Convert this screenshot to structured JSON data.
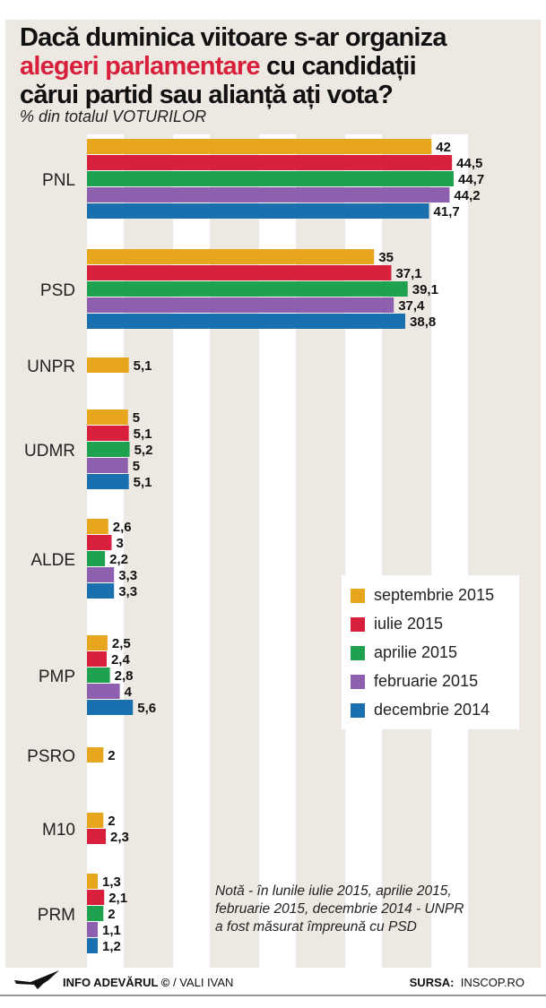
{
  "title": {
    "part1": "Dacă duminica viitoare s-ar organiza",
    "highlight": "alegeri parlamentare",
    "part2": "cu candidații",
    "part3": "cărui partid sau alianță ați vota?"
  },
  "subtitle": "% din totalul VOTURILOR",
  "chart_data": {
    "type": "bar",
    "orientation": "horizontal",
    "title": "Dacă duminica viitoare s-ar organiza alegeri parlamentare cu candidații cărui partid sau alianță ați vota?",
    "subtitle": "% din totalul VOTURILOR",
    "legend_position": "right",
    "series_colors": {
      "septembrie 2015": "#e8a61f",
      "iulie 2015": "#d8203c",
      "aprilie 2015": "#1ea24f",
      "februarie 2015": "#8e5fae",
      "decembrie 2014": "#1a6fae"
    },
    "categories": [
      {
        "name": "PNL",
        "values": [
          {
            "series": "septembrie 2015",
            "label": "42",
            "value": 42
          },
          {
            "series": "iulie 2015",
            "label": "44,5",
            "value": 44.5
          },
          {
            "series": "aprilie 2015",
            "label": "44,7",
            "value": 44.7
          },
          {
            "series": "februarie 2015",
            "label": "44,2",
            "value": 44.2
          },
          {
            "series": "decembrie 2014",
            "label": "41,7",
            "value": 41.7
          }
        ]
      },
      {
        "name": "PSD",
        "values": [
          {
            "series": "septembrie 2015",
            "label": "35",
            "value": 35
          },
          {
            "series": "iulie 2015",
            "label": "37,1",
            "value": 37.1
          },
          {
            "series": "aprilie 2015",
            "label": "39,1",
            "value": 39.1
          },
          {
            "series": "februarie 2015",
            "label": "37,4",
            "value": 37.4
          },
          {
            "series": "decembrie 2014",
            "label": "38,8",
            "value": 38.8
          }
        ]
      },
      {
        "name": "UNPR",
        "values": [
          {
            "series": "septembrie 2015",
            "label": "5,1",
            "value": 5.1
          }
        ]
      },
      {
        "name": "UDMR",
        "values": [
          {
            "series": "septembrie 2015",
            "label": "5",
            "value": 5
          },
          {
            "series": "iulie 2015",
            "label": "5,1",
            "value": 5.1
          },
          {
            "series": "aprilie 2015",
            "label": "5,2",
            "value": 5.2
          },
          {
            "series": "februarie 2015",
            "label": "5",
            "value": 5
          },
          {
            "series": "decembrie 2014",
            "label": "5,1",
            "value": 5.1
          }
        ]
      },
      {
        "name": "ALDE",
        "values": [
          {
            "series": "septembrie 2015",
            "label": "2,6",
            "value": 2.6
          },
          {
            "series": "iulie 2015",
            "label": "3",
            "value": 3
          },
          {
            "series": "aprilie 2015",
            "label": "2,2",
            "value": 2.2
          },
          {
            "series": "februarie 2015",
            "label": "3,3",
            "value": 3.3
          },
          {
            "series": "decembrie 2014",
            "label": "3,3",
            "value": 3.3
          }
        ]
      },
      {
        "name": "PMP",
        "values": [
          {
            "series": "septembrie 2015",
            "label": "2,5",
            "value": 2.5
          },
          {
            "series": "iulie 2015",
            "label": "2,4",
            "value": 2.4
          },
          {
            "series": "aprilie 2015",
            "label": "2,8",
            "value": 2.8
          },
          {
            "series": "februarie 2015",
            "label": "4",
            "value": 4
          },
          {
            "series": "decembrie 2014",
            "label": "5,6",
            "value": 5.6
          }
        ]
      },
      {
        "name": "PSRO",
        "values": [
          {
            "series": "septembrie 2015",
            "label": "2",
            "value": 2
          }
        ]
      },
      {
        "name": "M10",
        "values": [
          {
            "series": "septembrie 2015",
            "label": "2",
            "value": 2
          },
          {
            "series": "iulie 2015",
            "label": "2,3",
            "value": 2.3
          }
        ]
      },
      {
        "name": "PRM",
        "values": [
          {
            "series": "septembrie 2015",
            "label": "1,3",
            "value": 1.3
          },
          {
            "series": "iulie 2015",
            "label": "2,1",
            "value": 2.1
          },
          {
            "series": "aprilie 2015",
            "label": "2",
            "value": 2
          },
          {
            "series": "februarie 2015",
            "label": "1,1",
            "value": 1.1
          },
          {
            "series": "decembrie 2014",
            "label": "1,2",
            "value": 1.2
          }
        ]
      }
    ]
  },
  "legend": [
    {
      "label": "septembrie 2015",
      "color": "#e8a61f"
    },
    {
      "label": "iulie 2015",
      "color": "#d8203c"
    },
    {
      "label": "aprilie 2015",
      "color": "#1ea24f"
    },
    {
      "label": "februarie 2015",
      "color": "#8e5fae"
    },
    {
      "label": "decembrie 2014",
      "color": "#1a6fae"
    }
  ],
  "note": {
    "line1": "Notă - în lunile iulie 2015, aprilie 2015,",
    "line2": "februarie 2015, decembrie 2014 - UNPR",
    "line3": "a fost măsurat împreună cu PSD"
  },
  "footer": {
    "brand": "INFO ADEVĂRUL ©",
    "author": "/ VALI IVAN",
    "source_label": "SURSA:",
    "source": "INSCOP.RO",
    "logo_icon": "eagle-icon"
  }
}
